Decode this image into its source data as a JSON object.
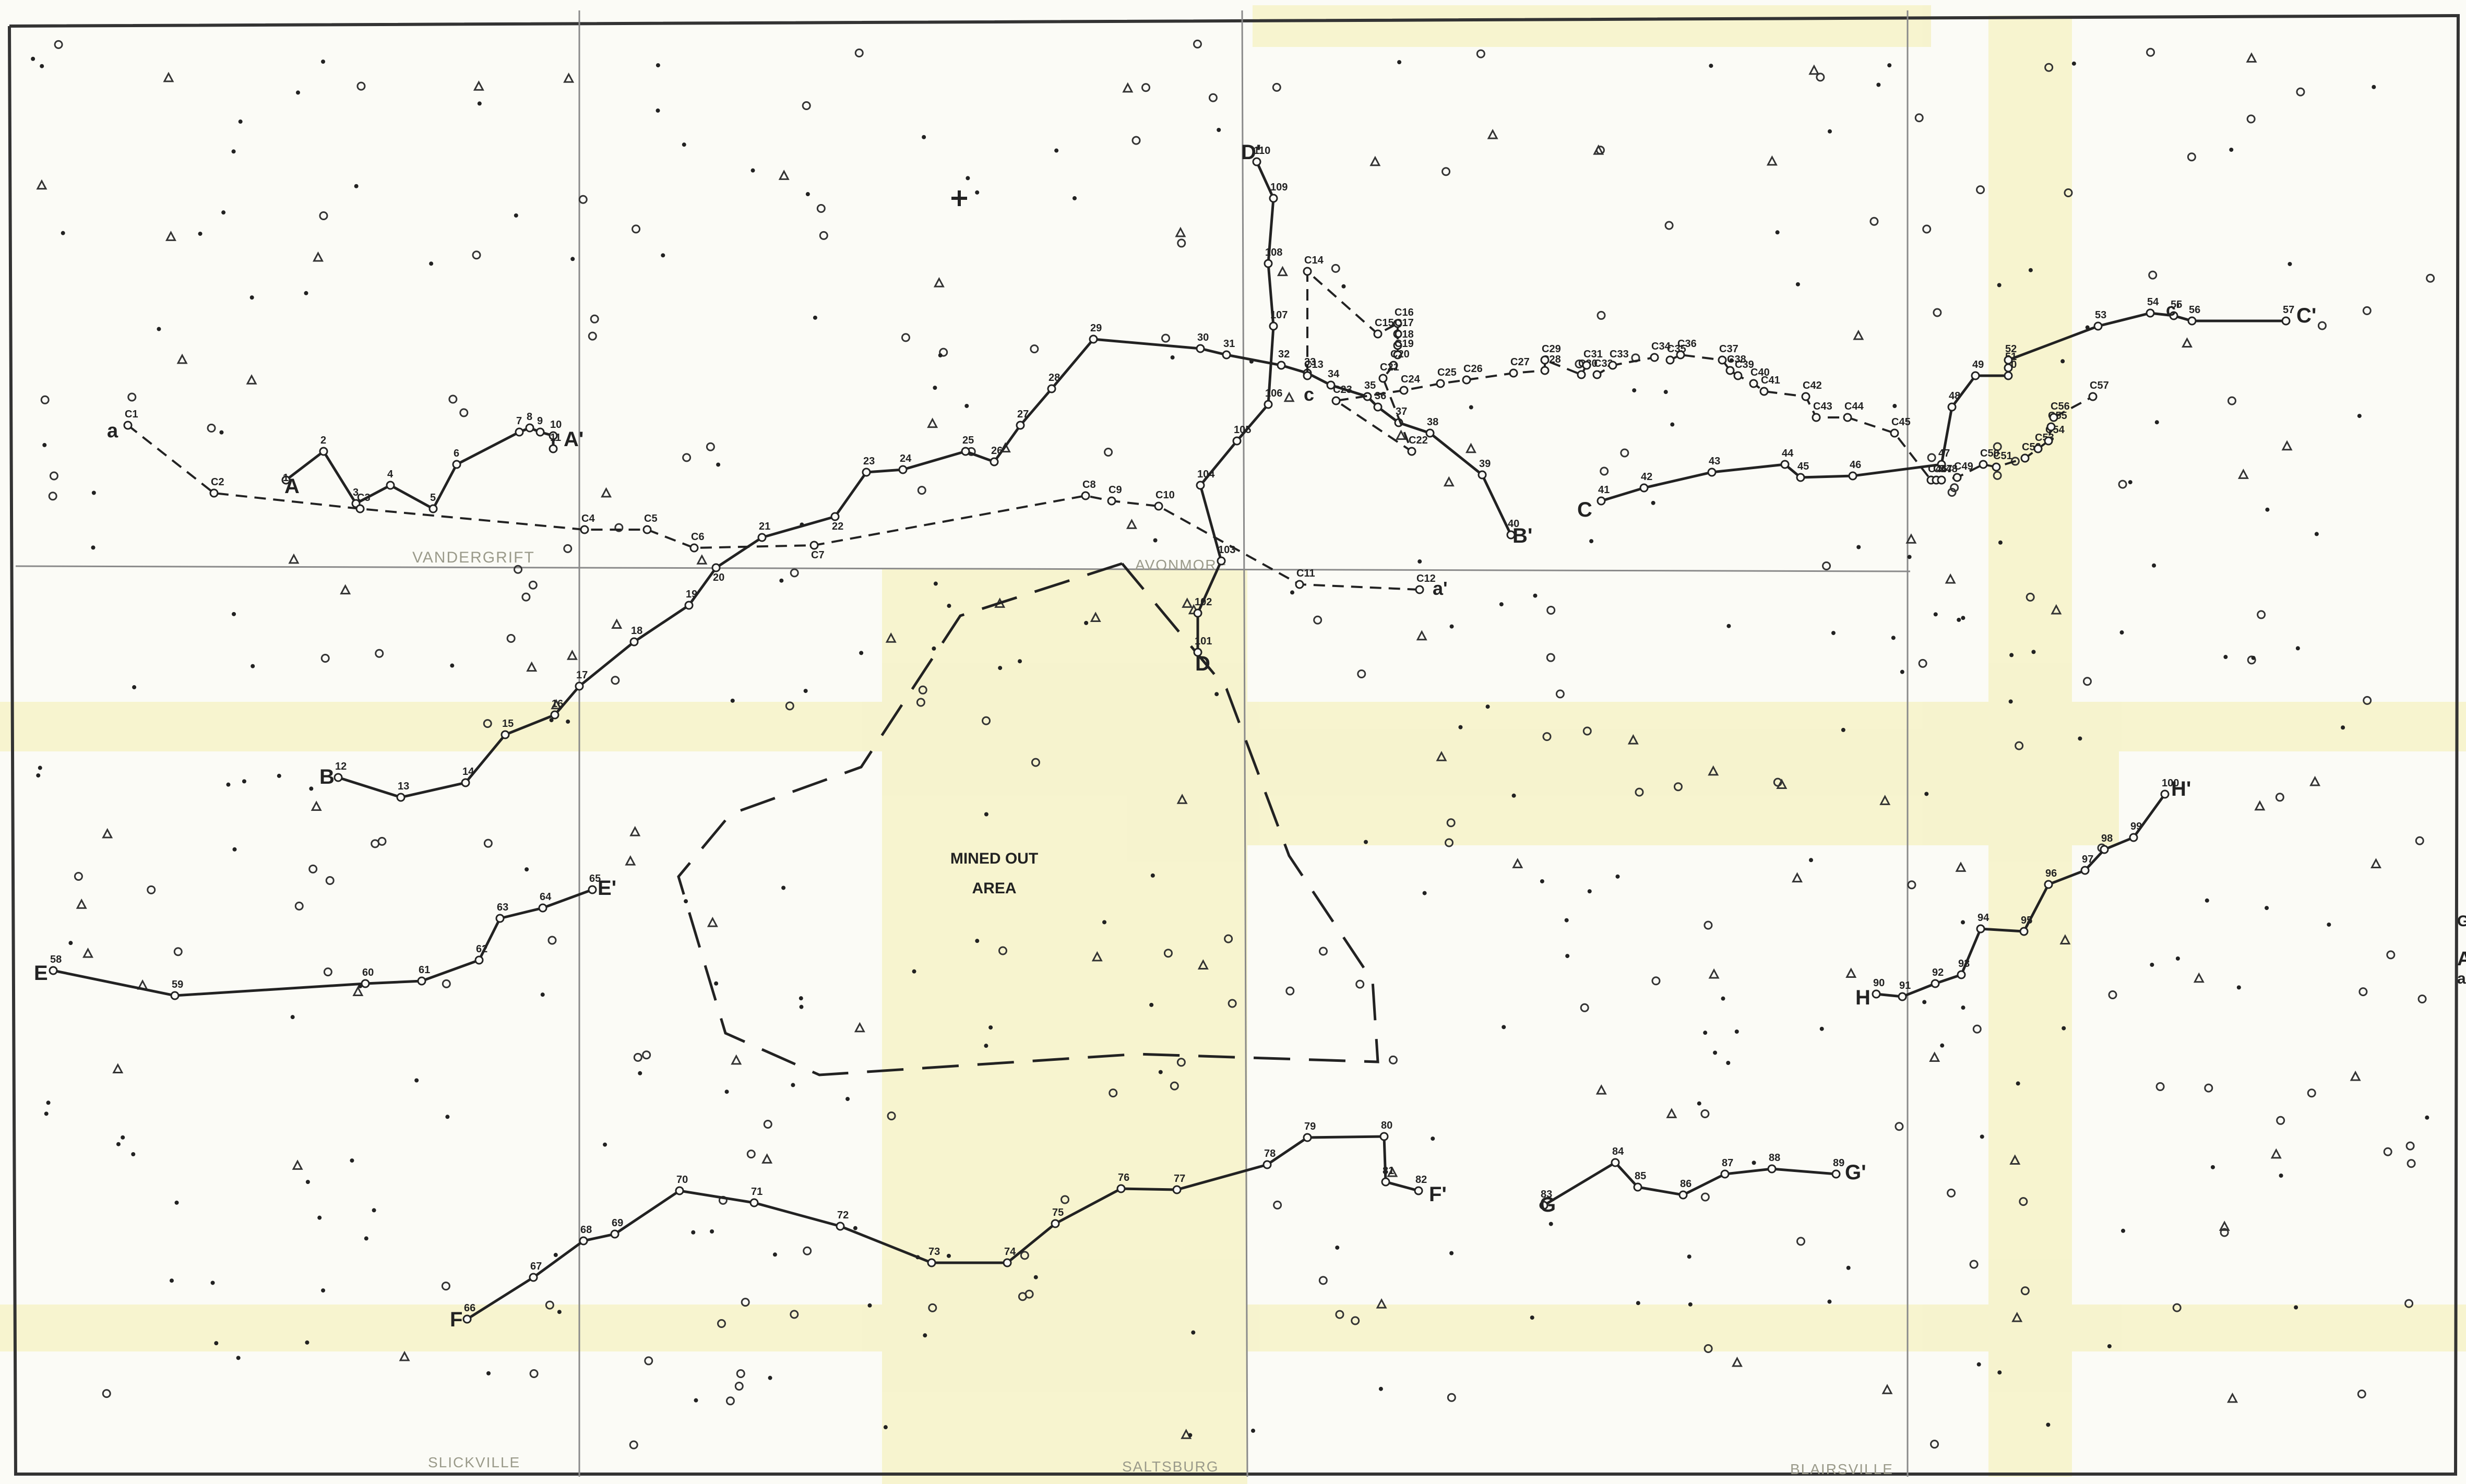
{
  "colors": {
    "paper": "#fbfbf6",
    "ink": "#222222",
    "yellow_tint": "#f6f2c8",
    "grid_line": "#8a8a8a",
    "town_text": "#9a9a8a"
  },
  "symbols": {
    "well_circle": "circle-icon",
    "well_triangle": "triangle-icon",
    "well_dot": "dot-icon",
    "cross": "plus-icon"
  },
  "towns": [
    "VANDERGRIFT",
    "AVONMORE",
    "SLICKVILLE",
    "SALTSBURG",
    "BLAIRSVILLE"
  ],
  "area_label": [
    "MINED OUT",
    "AREA"
  ],
  "margin_text": [
    "G",
    "A",
    "a"
  ],
  "sections": [
    {
      "id": "A",
      "start_label": "A",
      "end_label": "A'",
      "style": "solid",
      "points": [
        "1",
        "2",
        "3",
        "4",
        "5",
        "6",
        "7",
        "8",
        "9",
        "10",
        "11"
      ]
    },
    {
      "id": "a",
      "start_label": "a",
      "end_label": "a'",
      "style": "dashed",
      "points": [
        "C1",
        "C2",
        "C3",
        "C4",
        "C5",
        "C6",
        "C7",
        "C8",
        "C9",
        "C10",
        "C11",
        "C12"
      ]
    },
    {
      "id": "B",
      "start_label": "B",
      "end_label": "B'",
      "style": "solid",
      "points": [
        "12",
        "13",
        "14",
        "15",
        "16",
        "17",
        "18",
        "19",
        "20",
        "21",
        "22",
        "23",
        "24",
        "25",
        "26",
        "27",
        "28",
        "29",
        "30",
        "31",
        "32",
        "33",
        "34",
        "35",
        "36",
        "37",
        "38",
        "39",
        "40"
      ]
    },
    {
      "id": "C",
      "start_label": "C",
      "end_label": "C'",
      "style": "solid",
      "points": [
        "41",
        "42",
        "43",
        "44",
        "45",
        "46",
        "47",
        "48",
        "49",
        "50",
        "51",
        "52",
        "53",
        "54",
        "55",
        "56",
        "57"
      ]
    },
    {
      "id": "c",
      "start_label": "c",
      "end_label": "c'",
      "style": "dashed",
      "points": [
        "C13",
        "C14",
        "C15",
        "C16",
        "C17",
        "C18",
        "C19",
        "C20",
        "C21",
        "C22",
        "C23",
        "C24",
        "C25",
        "C26",
        "C27",
        "C28",
        "C29",
        "C30",
        "C31",
        "C32",
        "C33",
        "C34",
        "C35",
        "C36",
        "C37",
        "C38",
        "C39",
        "C40",
        "C41",
        "C42",
        "C43",
        "C44",
        "C45",
        "C46",
        "C47",
        "C48",
        "C49",
        "C50",
        "C51",
        "C52",
        "C53",
        "C54",
        "C55",
        "C56",
        "C57"
      ]
    },
    {
      "id": "D",
      "start_label": "D",
      "end_label": "D'",
      "style": "solid",
      "points": [
        "101",
        "102",
        "103",
        "104",
        "105",
        "106",
        "107",
        "108",
        "109",
        "110"
      ]
    },
    {
      "id": "E",
      "start_label": "E",
      "end_label": "E'",
      "style": "solid",
      "points": [
        "58",
        "59",
        "60",
        "61",
        "62",
        "63",
        "64",
        "65"
      ]
    },
    {
      "id": "F",
      "start_label": "F",
      "end_label": "F'",
      "style": "solid",
      "points": [
        "66",
        "67",
        "68",
        "69",
        "70",
        "71",
        "72",
        "73",
        "74",
        "75",
        "76",
        "77",
        "78",
        "79",
        "80",
        "81",
        "82"
      ]
    },
    {
      "id": "G",
      "start_label": "G",
      "end_label": "G'",
      "style": "solid",
      "points": [
        "83",
        "84",
        "85",
        "86",
        "87",
        "88",
        "89"
      ]
    },
    {
      "id": "H",
      "start_label": "H",
      "end_label": "H'",
      "style": "solid",
      "points": [
        "90",
        "91",
        "92",
        "93",
        "94",
        "95",
        "96",
        "97",
        "98",
        "99",
        "100"
      ]
    }
  ]
}
